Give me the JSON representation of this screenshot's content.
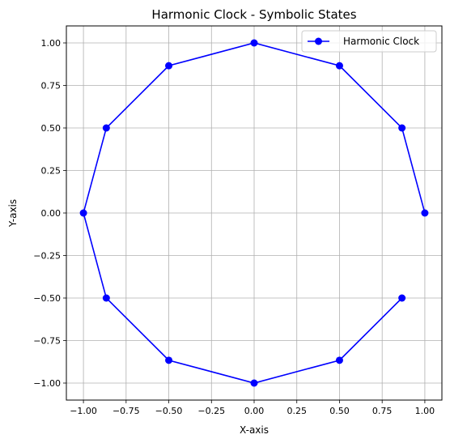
{
  "chart_data": {
    "type": "line",
    "title": "Harmonic Clock - Symbolic States",
    "xlabel": "X-axis",
    "ylabel": "Y-axis",
    "xlim": [
      -1.1,
      1.1
    ],
    "ylim": [
      -1.1,
      1.1
    ],
    "grid": true,
    "legend_position": "top-right",
    "xticks": [
      -1.0,
      -0.75,
      -0.5,
      -0.25,
      0.0,
      0.25,
      0.5,
      0.75,
      1.0
    ],
    "yticks": [
      -1.0,
      -0.75,
      -0.5,
      -0.25,
      0.0,
      0.25,
      0.5,
      0.75,
      1.0
    ],
    "xtick_labels": [
      "−1.00",
      "−0.75",
      "−0.50",
      "−0.25",
      "0.00",
      "0.25",
      "0.50",
      "0.75",
      "1.00"
    ],
    "ytick_labels": [
      "−1.00",
      "−0.75",
      "−0.50",
      "−0.25",
      "0.00",
      "0.25",
      "0.50",
      "0.75",
      "1.00"
    ],
    "series": [
      {
        "name": "Harmonic Clock",
        "color": "#0000ff",
        "marker": "circle",
        "x": [
          1.0,
          0.866,
          0.5,
          0.0,
          -0.5,
          -0.866,
          -1.0,
          -0.866,
          -0.5,
          0.0,
          0.5,
          0.866
        ],
        "y": [
          0.0,
          0.5,
          0.866,
          1.0,
          0.866,
          0.5,
          0.0,
          -0.5,
          -0.866,
          -1.0,
          -0.866,
          -0.5
        ]
      }
    ]
  }
}
